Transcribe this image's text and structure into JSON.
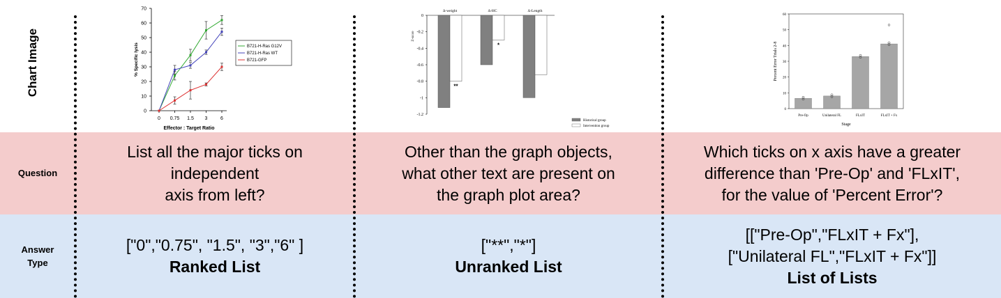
{
  "rows": {
    "chart_label": "Chart Image",
    "question_label": "Question",
    "answer_label_lines": [
      "Answer",
      "Type"
    ]
  },
  "columns": [
    {
      "question_lines": [
        "List all the major ticks on",
        "independent",
        "axis from left?"
      ],
      "answer_lines": [
        "[\"0\",\"0.75\", \"1.5\", \"3\",\"6\" ]"
      ],
      "answer_type": "Ranked List"
    },
    {
      "question_lines": [
        "Other than the graph objects,",
        "what other text are present on",
        "the graph plot area?"
      ],
      "answer_lines": [
        "[\"**\",\"*\"]"
      ],
      "answer_type": "Unranked List"
    },
    {
      "question_lines": [
        "Which ticks on x axis have a greater",
        "difference than 'Pre-Op' and 'FLxIT',",
        "for the value of 'Percent Error'?"
      ],
      "answer_lines": [
        "[[\"Pre-Op\",\"FLxIT + Fx\"],",
        "[\"Unilateral FL\",\"FLxIT + Fx\"]]"
      ],
      "answer_type": "List of Lists"
    }
  ],
  "chart_data": [
    {
      "type": "line",
      "x": [
        "0",
        "0.75",
        "1.5",
        "3",
        "6"
      ],
      "xlabel": "Effector : Target  Ratio",
      "ylabel": "% Specific lysis",
      "yticks": [
        "0",
        "10",
        "20",
        "30",
        "40",
        "50",
        "60",
        "70"
      ],
      "ylim": [
        0,
        70
      ],
      "legend_position": "right",
      "series": [
        {
          "name": "B721-H-Ras G12V",
          "color": "#33aa33",
          "values": [
            0,
            24,
            38,
            55,
            62
          ],
          "err": [
            0,
            3,
            4,
            6,
            3
          ]
        },
        {
          "name": "B721-H-Ras WT",
          "color": "#4444bb",
          "values": [
            0,
            28,
            31,
            40,
            54
          ],
          "err": [
            0,
            3,
            2,
            1.5,
            2.5
          ]
        },
        {
          "name": "B721-GFP",
          "color": "#dd3333",
          "values": [
            0,
            7,
            14,
            18,
            30
          ],
          "err": [
            0,
            2.5,
            6,
            1,
            2.5
          ]
        }
      ]
    },
    {
      "type": "bar",
      "categories": [
        "Δ-weight",
        "Δ-HC",
        "Δ-Length"
      ],
      "ylabel": "Z-score",
      "yticks": [
        "0",
        "-0.2",
        "-0.4",
        "-0.6",
        "-0.8",
        "-1",
        "-1.2"
      ],
      "ylim": [
        -1.2,
        0
      ],
      "annotations": [
        "**",
        "*",
        ""
      ],
      "series": [
        {
          "name": "Historical group",
          "color": "#808080",
          "values": [
            -1.12,
            -0.6,
            -1.0
          ]
        },
        {
          "name": "Intervention group",
          "color": "#ffffff",
          "values": [
            -0.8,
            -0.3,
            -0.72
          ]
        }
      ]
    },
    {
      "type": "bar",
      "categories": [
        "Pre-Op",
        "Unilateral FL",
        "FLxIT",
        "FLxIT + Fx"
      ],
      "xlabel": "Stage",
      "ylabel": "Percent Error Trials 2-8",
      "yticks": [
        "0",
        "10",
        "20",
        "30",
        "40",
        "50",
        "60"
      ],
      "ylim": [
        0,
        60
      ],
      "values": [
        6.5,
        8,
        33,
        41
      ],
      "color": "#a6a6a6"
    }
  ]
}
